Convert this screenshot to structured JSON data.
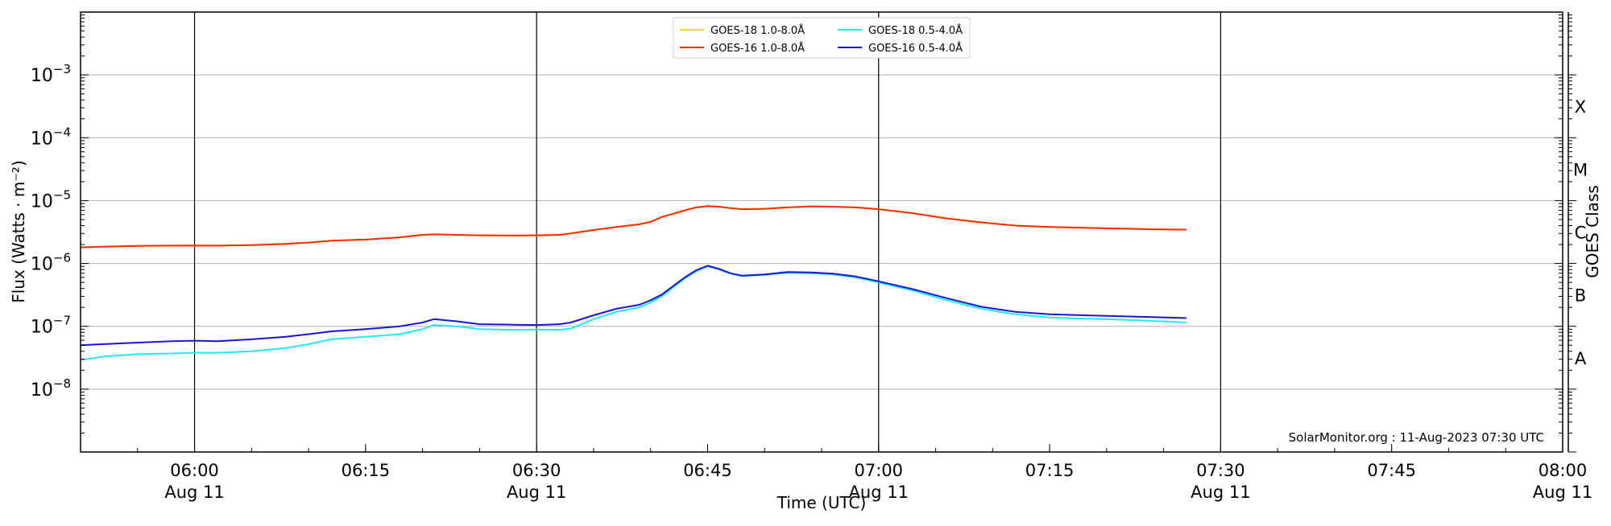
{
  "chart_data": {
    "type": "line",
    "title": "",
    "xlabel": "Time (UTC)",
    "ylabel": "Flux (Watts · m⁻²)",
    "right_ylabel": "GOES Class",
    "y_scale": "log",
    "ylim": [
      1e-09,
      0.01
    ],
    "xlim": [
      "05:50",
      "08:00"
    ],
    "x_ticks": [
      {
        "x": "06:00",
        "label": "06:00",
        "sublabel": "Aug 11"
      },
      {
        "x": "06:15",
        "label": "06:15",
        "sublabel": ""
      },
      {
        "x": "06:30",
        "label": "06:30",
        "sublabel": "Aug 11"
      },
      {
        "x": "06:45",
        "label": "06:45",
        "sublabel": ""
      },
      {
        "x": "07:00",
        "label": "07:00",
        "sublabel": "Aug 11"
      },
      {
        "x": "07:15",
        "label": "07:15",
        "sublabel": ""
      },
      {
        "x": "07:30",
        "label": "07:30",
        "sublabel": "Aug 11"
      },
      {
        "x": "07:45",
        "label": "07:45",
        "sublabel": ""
      },
      {
        "x": "08:00",
        "label": "08:00",
        "sublabel": "Aug 11"
      }
    ],
    "y_ticks": [
      {
        "exp": -8,
        "base": "10",
        "sup": "−8"
      },
      {
        "exp": -7,
        "base": "10",
        "sup": "−7"
      },
      {
        "exp": -6,
        "base": "10",
        "sup": "−6"
      },
      {
        "exp": -5,
        "base": "10",
        "sup": "−5"
      },
      {
        "exp": -4,
        "base": "10",
        "sup": "−4"
      },
      {
        "exp": -3,
        "base": "10",
        "sup": "−3"
      }
    ],
    "goes_classes": [
      {
        "label": "A",
        "exp": -7.5
      },
      {
        "label": "B",
        "exp": -6.5
      },
      {
        "label": "C",
        "exp": -5.5
      },
      {
        "label": "M",
        "exp": -4.5
      },
      {
        "label": "X",
        "exp": -3.5
      }
    ],
    "day_lines": [
      "06:00",
      "06:30",
      "07:00",
      "07:30"
    ],
    "grid": "horizontal",
    "legend_position": "top-center",
    "annotation": "SolarMonitor.org : 11-Aug-2023 07:30 UTC",
    "x": [
      "05:50",
      "05:52",
      "05:55",
      "05:58",
      "06:00",
      "06:02",
      "06:05",
      "06:08",
      "06:10",
      "06:12",
      "06:15",
      "06:18",
      "06:20",
      "06:21",
      "06:23",
      "06:25",
      "06:28",
      "06:30",
      "06:32",
      "06:33",
      "06:35",
      "06:37",
      "06:39",
      "06:40",
      "06:41",
      "06:42",
      "06:43",
      "06:44",
      "06:45",
      "06:46",
      "06:47",
      "06:48",
      "06:50",
      "06:52",
      "06:54",
      "06:56",
      "06:58",
      "07:00",
      "07:03",
      "07:06",
      "07:09",
      "07:12",
      "07:15",
      "07:18",
      "07:21",
      "07:24",
      "07:27"
    ],
    "series": [
      {
        "name": "GOES-18 1.0-8.0Å",
        "color": "#ffd700",
        "values": [
          1.8e-06,
          1.85e-06,
          1.9e-06,
          1.92e-06,
          1.93e-06,
          1.92e-06,
          1.96e-06,
          2.05e-06,
          2.15e-06,
          2.3e-06,
          2.4e-06,
          2.6e-06,
          2.85e-06,
          2.9e-06,
          2.85e-06,
          2.8e-06,
          2.78e-06,
          2.8e-06,
          2.85e-06,
          3e-06,
          3.4e-06,
          3.8e-06,
          4.2e-06,
          4.6e-06,
          5.5e-06,
          6.2e-06,
          7e-06,
          7.8e-06,
          8.2e-06,
          8e-06,
          7.6e-06,
          7.3e-06,
          7.4e-06,
          7.8e-06,
          8.1e-06,
          8e-06,
          7.8e-06,
          7.3e-06,
          6.3e-06,
          5.2e-06,
          4.5e-06,
          4e-06,
          3.8e-06,
          3.7e-06,
          3.6e-06,
          3.5e-06,
          3.45e-06
        ]
      },
      {
        "name": "GOES-16 1.0-8.0Å",
        "color": "#ff2a00",
        "values": [
          1.8e-06,
          1.85e-06,
          1.9e-06,
          1.92e-06,
          1.93e-06,
          1.92e-06,
          1.96e-06,
          2.05e-06,
          2.15e-06,
          2.3e-06,
          2.4e-06,
          2.6e-06,
          2.85e-06,
          2.9e-06,
          2.85e-06,
          2.8e-06,
          2.78e-06,
          2.8e-06,
          2.85e-06,
          3e-06,
          3.4e-06,
          3.8e-06,
          4.2e-06,
          4.6e-06,
          5.5e-06,
          6.2e-06,
          7e-06,
          7.8e-06,
          8.2e-06,
          8e-06,
          7.6e-06,
          7.3e-06,
          7.4e-06,
          7.8e-06,
          8.1e-06,
          8e-06,
          7.8e-06,
          7.3e-06,
          6.3e-06,
          5.2e-06,
          4.5e-06,
          4e-06,
          3.8e-06,
          3.7e-06,
          3.6e-06,
          3.5e-06,
          3.45e-06
        ]
      },
      {
        "name": "GOES-18 0.5-4.0Å",
        "color": "#22e8f0",
        "values": [
          2.9e-08,
          3.3e-08,
          3.6e-08,
          3.7e-08,
          3.8e-08,
          3.8e-08,
          4e-08,
          4.5e-08,
          5.2e-08,
          6.2e-08,
          6.8e-08,
          7.5e-08,
          9e-08,
          1.05e-07,
          1e-07,
          9e-08,
          8.8e-08,
          8.9e-08,
          8.8e-08,
          9.2e-08,
          1.3e-07,
          1.7e-07,
          2e-07,
          2.4e-07,
          3e-07,
          4.2e-07,
          5.8e-07,
          7.5e-07,
          9e-07,
          8e-07,
          6.9e-07,
          6.3e-07,
          6.6e-07,
          7.1e-07,
          7e-07,
          6.7e-07,
          6e-07,
          5e-07,
          3.7e-07,
          2.6e-07,
          1.9e-07,
          1.55e-07,
          1.38e-07,
          1.32e-07,
          1.28e-07,
          1.22e-07,
          1.15e-07
        ]
      },
      {
        "name": "GOES-16 0.5-4.0Å",
        "color": "#1a14d8",
        "values": [
          5e-08,
          5.2e-08,
          5.5e-08,
          5.8e-08,
          5.9e-08,
          5.8e-08,
          6.2e-08,
          6.8e-08,
          7.5e-08,
          8.3e-08,
          9e-08,
          1e-07,
          1.15e-07,
          1.3e-07,
          1.2e-07,
          1.08e-07,
          1.06e-07,
          1.05e-07,
          1.08e-07,
          1.15e-07,
          1.5e-07,
          1.9e-07,
          2.2e-07,
          2.6e-07,
          3.2e-07,
          4.4e-07,
          6e-07,
          7.8e-07,
          9.2e-07,
          8.2e-07,
          7e-07,
          6.4e-07,
          6.7e-07,
          7.3e-07,
          7.2e-07,
          6.9e-07,
          6.2e-07,
          5.2e-07,
          3.9e-07,
          2.8e-07,
          2.05e-07,
          1.7e-07,
          1.55e-07,
          1.5e-07,
          1.45e-07,
          1.4e-07,
          1.35e-07
        ]
      }
    ]
  }
}
